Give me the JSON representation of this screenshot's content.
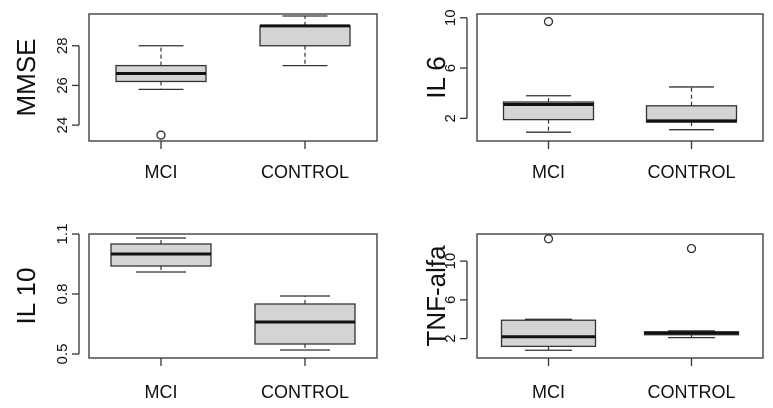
{
  "colors": {
    "box_fill": "#d4d4d4",
    "line": "#333333",
    "background": "#ffffff"
  },
  "chart_data": [
    {
      "type": "boxplot",
      "ylabel": "MMSE",
      "categories": [
        "MCI",
        "CONTROL"
      ],
      "yticks": [
        24,
        26,
        28
      ],
      "ylim": [
        23.2,
        29.6
      ],
      "boxes": [
        {
          "category": "MCI",
          "whisker_low": 25.8,
          "q1": 26.2,
          "median": 26.6,
          "q3": 27.0,
          "whisker_high": 28.0,
          "outliers": [
            23.5
          ]
        },
        {
          "category": "CONTROL",
          "whisker_low": 27.0,
          "q1": 28.0,
          "median": 29.0,
          "q3": 29.0,
          "whisker_high": 29.5,
          "outliers": []
        }
      ]
    },
    {
      "type": "boxplot",
      "ylabel": "IL 6",
      "categories": [
        "MCI",
        "CONTROL"
      ],
      "yticks": [
        2,
        6,
        10
      ],
      "ylim": [
        0.2,
        10.3
      ],
      "boxes": [
        {
          "category": "MCI",
          "whisker_low": 0.9,
          "q1": 1.9,
          "median": 3.1,
          "q3": 3.3,
          "whisker_high": 3.8,
          "outliers": [
            9.7
          ]
        },
        {
          "category": "CONTROL",
          "whisker_low": 1.1,
          "q1": 1.7,
          "median": 1.8,
          "q3": 3.0,
          "whisker_high": 4.5,
          "outliers": []
        }
      ]
    },
    {
      "type": "boxplot",
      "ylabel": "IL 10",
      "categories": [
        "MCI",
        "CONTROL"
      ],
      "yticks": [
        0.5,
        0.8,
        1.1
      ],
      "yticklabels": [
        "0.5",
        "0.8",
        "1.1"
      ],
      "ylim": [
        0.48,
        1.1
      ],
      "boxes": [
        {
          "category": "MCI",
          "whisker_low": 0.91,
          "q1": 0.94,
          "median": 1.0,
          "q3": 1.05,
          "whisker_high": 1.08,
          "outliers": []
        },
        {
          "category": "CONTROL",
          "whisker_low": 0.52,
          "q1": 0.55,
          "median": 0.66,
          "q3": 0.75,
          "whisker_high": 0.79,
          "outliers": []
        }
      ]
    },
    {
      "type": "boxplot",
      "ylabel": "TNF-alfa",
      "categories": [
        "MCI",
        "CONTROL"
      ],
      "yticks": [
        2,
        6,
        10
      ],
      "ylim": [
        0.0,
        12.8
      ],
      "boxes": [
        {
          "category": "MCI",
          "whisker_low": 0.8,
          "q1": 1.2,
          "median": 2.2,
          "q3": 3.9,
          "whisker_high": 4.0,
          "outliers": [
            12.3
          ]
        },
        {
          "category": "CONTROL",
          "whisker_low": 2.1,
          "q1": 2.4,
          "median": 2.6,
          "q3": 2.7,
          "whisker_high": 2.8,
          "outliers": [
            11.3
          ]
        }
      ]
    }
  ]
}
